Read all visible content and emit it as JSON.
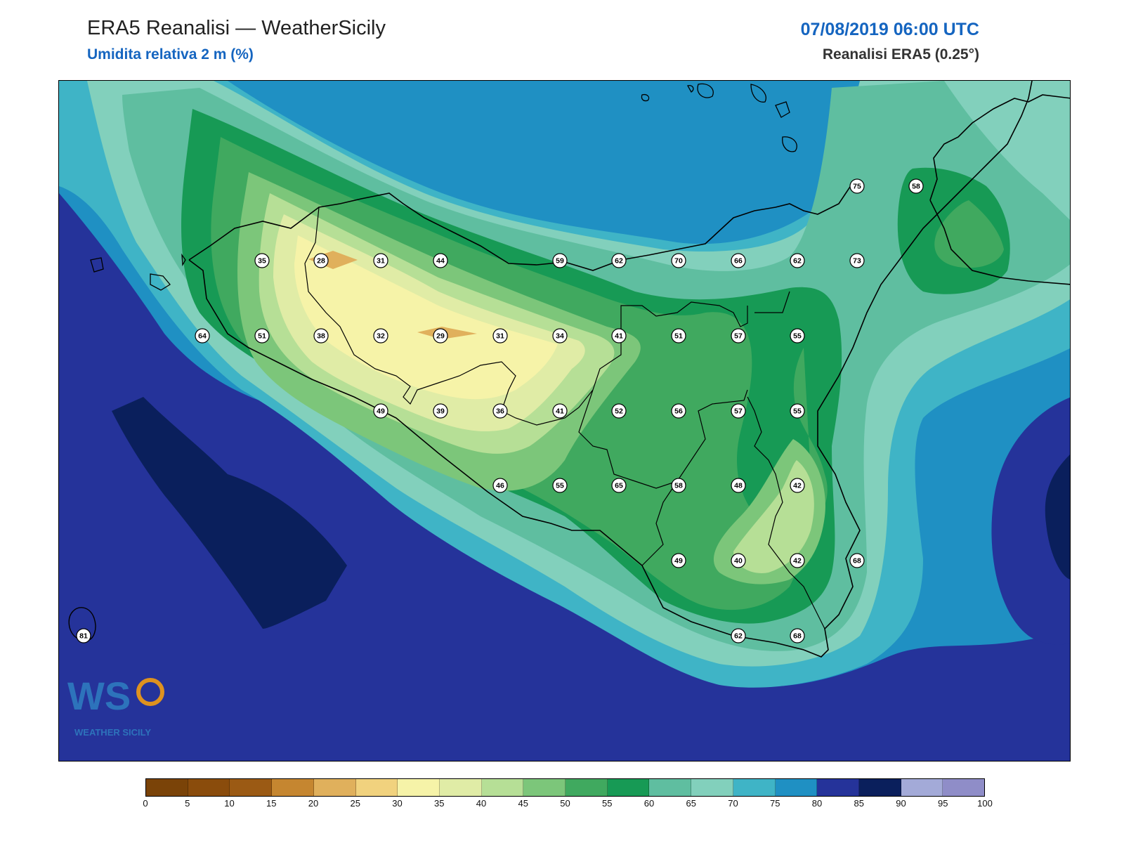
{
  "header": {
    "title": "ERA5 Reanalisi — WeatherSicily",
    "subtitle": "Umidita relativa 2 m (%)",
    "datetime": "07/08/2019 06:00 UTC",
    "source": "Reanalisi ERA5 (0.25°)"
  },
  "logo": {
    "text": "WEATHER SICILY",
    "icon": "weathersicily-ws-logo"
  },
  "stations": [
    {
      "value": "35"
    },
    {
      "value": "28"
    },
    {
      "value": "31"
    },
    {
      "value": "44"
    },
    {
      "value": "59"
    },
    {
      "value": "62"
    },
    {
      "value": "70"
    },
    {
      "value": "66"
    },
    {
      "value": "62"
    },
    {
      "value": "73"
    },
    {
      "value": "75"
    },
    {
      "value": "58"
    },
    {
      "value": "64"
    },
    {
      "value": "51"
    },
    {
      "value": "38"
    },
    {
      "value": "32"
    },
    {
      "value": "29"
    },
    {
      "value": "31"
    },
    {
      "value": "34"
    },
    {
      "value": "41"
    },
    {
      "value": "51"
    },
    {
      "value": "57"
    },
    {
      "value": "55"
    },
    {
      "value": "49"
    },
    {
      "value": "39"
    },
    {
      "value": "36"
    },
    {
      "value": "41"
    },
    {
      "value": "52"
    },
    {
      "value": "56"
    },
    {
      "value": "57"
    },
    {
      "value": "55"
    },
    {
      "value": "46"
    },
    {
      "value": "55"
    },
    {
      "value": "65"
    },
    {
      "value": "58"
    },
    {
      "value": "48"
    },
    {
      "value": "42"
    },
    {
      "value": "49"
    },
    {
      "value": "40"
    },
    {
      "value": "42"
    },
    {
      "value": "68"
    },
    {
      "value": "62"
    },
    {
      "value": "68"
    },
    {
      "value": "81"
    }
  ],
  "legend": {
    "colors": [
      "#7a4308",
      "#8a4c0c",
      "#9b5a14",
      "#c58630",
      "#e0b05c",
      "#f1d27e",
      "#f6f3a8",
      "#e0eca6",
      "#b6df96",
      "#7cc67a",
      "#40a95f",
      "#179a55",
      "#5fbea0",
      "#82d0bc",
      "#3fb4c6",
      "#1f90c3",
      "#25339a",
      "#0a1f5c",
      "#a3aad8",
      "#8f8dc8"
    ],
    "ticks": [
      "0",
      "5",
      "10",
      "15",
      "20",
      "25",
      "30",
      "35",
      "40",
      "45",
      "50",
      "55",
      "60",
      "65",
      "70",
      "75",
      "80",
      "85",
      "90",
      "95",
      "100"
    ]
  },
  "colors": {
    "sea_deep": "#25339a",
    "sea_darkest": "#0a1f5c",
    "title_accent": "#1565c0"
  }
}
